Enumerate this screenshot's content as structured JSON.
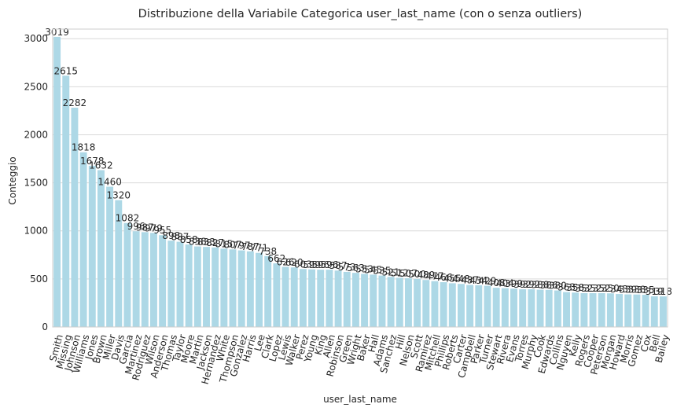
{
  "chart_data": {
    "type": "bar",
    "title": "Distribuzione della Variabile Categorica user_last_name (con o senza outliers)",
    "xlabel": "user_last_name",
    "ylabel": "Conteggio",
    "ylim": [
      0,
      3100
    ],
    "yticks": [
      0,
      500,
      1000,
      1500,
      2000,
      2500,
      3000
    ],
    "grid": "horizontal",
    "bar_color": "#add8e6",
    "categories": [
      "Smith",
      "Missing",
      "Johnson",
      "Williams",
      "Jones",
      "Brown",
      "Miller",
      "Davis",
      "Garcia",
      "Martinez",
      "Rodriguez",
      "Wilson",
      "Anderson",
      "Thomas",
      "Taylor",
      "Moore",
      "Martin",
      "Jackson",
      "Hernandez",
      "White",
      "Thompson",
      "Gonzalez",
      "Harris",
      "Lee",
      "Clark",
      "Lopez",
      "Lewis",
      "Walker",
      "Perez",
      "Young",
      "King",
      "Allen",
      "Robinson",
      "Green",
      "Wright",
      "Baker",
      "Hall",
      "Adams",
      "Sanchez",
      "Hill",
      "Nelson",
      "Scott",
      "Ramirez",
      "Mitchell",
      "Phillips",
      "Roberts",
      "Carter",
      "Campbell",
      "Parker",
      "Turner",
      "Stewart",
      "Rivera",
      "Evans",
      "Torres",
      "Murphy",
      "Cook",
      "Edwards",
      "Collins",
      "Nguyen",
      "Kelly",
      "Rogers",
      "Cooper",
      "Peterson",
      "Morgan",
      "Howard",
      "Morris",
      "Gomez",
      "Cox",
      "Bell",
      "Bailey"
    ],
    "values": [
      3019,
      2615,
      2282,
      1818,
      1678,
      1632,
      1460,
      1320,
      1082,
      996,
      987,
      979,
      955,
      898,
      887,
      858,
      838,
      833,
      827,
      815,
      807,
      797,
      787,
      771,
      738,
      662,
      626,
      620,
      603,
      599,
      596,
      596,
      587,
      573,
      563,
      553,
      545,
      535,
      521,
      512,
      507,
      500,
      489,
      477,
      466,
      455,
      448,
      437,
      434,
      429,
      408,
      404,
      399,
      392,
      392,
      388,
      386,
      380,
      363,
      358,
      352,
      352,
      352,
      350,
      343,
      339,
      338,
      335,
      319,
      318
    ]
  }
}
